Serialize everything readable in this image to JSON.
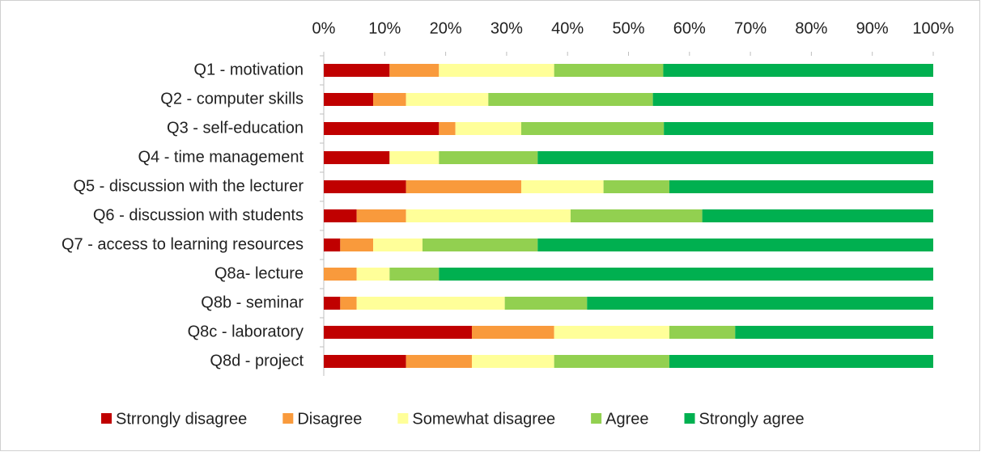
{
  "chart_data": {
    "type": "stacked-bar-horizontal",
    "categories": [
      "Q1 - motivation",
      "Q2 - computer skills",
      "Q3 - self-education",
      "Q4 - time management",
      "Q5 - discussion with the lecturer",
      "Q6 - discussion  with students",
      "Q7 - access to learning resources",
      "Q8a- lecture",
      "Q8b - seminar",
      "Q8c - laboratory",
      "Q8d - project"
    ],
    "series": [
      {
        "name": "Strrongly disagree",
        "color": "#c00000",
        "values": [
          10.8,
          8.1,
          18.9,
          10.8,
          13.5,
          5.4,
          2.7,
          0,
          2.7,
          24.3,
          13.5
        ]
      },
      {
        "name": "Disagree",
        "color": "#f99a3c",
        "values": [
          8.1,
          5.4,
          2.7,
          0,
          18.9,
          8.1,
          5.4,
          5.4,
          2.7,
          13.5,
          10.8
        ]
      },
      {
        "name": "Somewhat disagree",
        "color": "#ffff99",
        "values": [
          18.9,
          13.5,
          10.8,
          8.1,
          13.5,
          27.0,
          8.1,
          5.4,
          24.3,
          18.9,
          13.5
        ]
      },
      {
        "name": "Agree",
        "color": "#92d050",
        "values": [
          17.9,
          27.0,
          23.4,
          16.2,
          10.8,
          21.6,
          18.9,
          8.1,
          13.5,
          10.8,
          18.9
        ]
      },
      {
        "name": "Strongly agree",
        "color": "#00b050",
        "values": [
          44.3,
          46.0,
          44.2,
          64.9,
          43.3,
          37.9,
          64.9,
          81.1,
          56.8,
          32.5,
          43.3
        ]
      }
    ],
    "xlim": [
      0,
      100
    ],
    "xticks": [
      {
        "value": 0,
        "label": "0%"
      },
      {
        "value": 10,
        "label": "10%"
      },
      {
        "value": 20,
        "label": "20%"
      },
      {
        "value": 30,
        "label": "30%"
      },
      {
        "value": 40,
        "label": "40%"
      },
      {
        "value": 50,
        "label": "50%"
      },
      {
        "value": 60,
        "label": "60%"
      },
      {
        "value": 70,
        "label": "70%"
      },
      {
        "value": 80,
        "label": "80%"
      },
      {
        "value": 90,
        "label": "90%"
      },
      {
        "value": 100,
        "label": "100%"
      }
    ],
    "grid": false,
    "legend": "bottom"
  }
}
